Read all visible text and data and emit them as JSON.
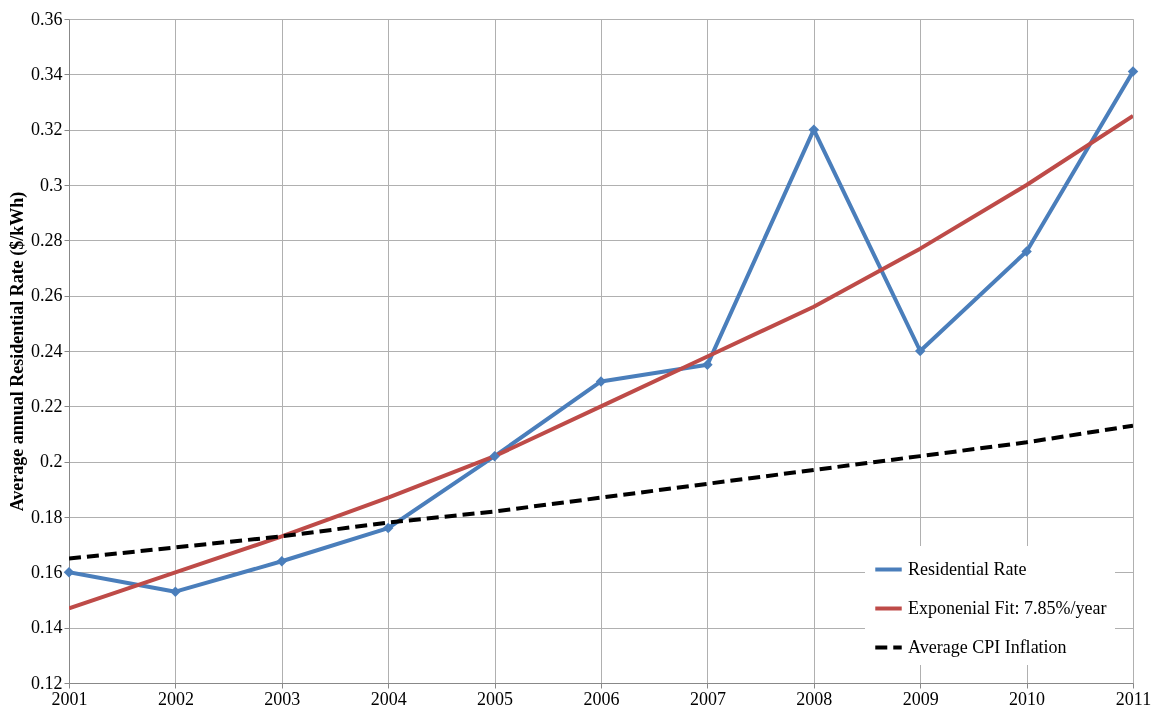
{
  "chart_data": {
    "type": "line",
    "ylabel": "Average annual Residential Rate ($/kWh)",
    "x": [
      2001,
      2002,
      2003,
      2004,
      2005,
      2006,
      2007,
      2008,
      2009,
      2010,
      2011
    ],
    "series": [
      {
        "name": "Residential Rate",
        "color": "#4a7ebb",
        "marker": "diamond",
        "line_style": "solid",
        "values": [
          0.16,
          0.153,
          0.164,
          0.176,
          0.202,
          0.229,
          0.235,
          0.32,
          0.24,
          0.276,
          0.341
        ]
      },
      {
        "name": "Exponenial Fit: 7.85%/year",
        "color": "#be4b48",
        "marker": "none",
        "line_style": "solid",
        "values": [
          0.147,
          0.16,
          0.173,
          0.187,
          0.202,
          0.22,
          0.238,
          0.256,
          0.277,
          0.3,
          0.325
        ]
      },
      {
        "name": "Average CPI Inflation",
        "color": "#000000",
        "marker": "none",
        "line_style": "dashed",
        "values": [
          0.165,
          0.169,
          0.173,
          0.178,
          0.182,
          0.187,
          0.192,
          0.197,
          0.202,
          0.207,
          0.213
        ]
      }
    ],
    "xlim": [
      2001,
      2011
    ],
    "xticks": [
      2001,
      2002,
      2003,
      2004,
      2005,
      2006,
      2007,
      2008,
      2009,
      2010,
      2011
    ],
    "ylim": [
      0.12,
      0.36
    ],
    "yticks": [
      0.12,
      0.14,
      0.16,
      0.18,
      0.2,
      0.22,
      0.24,
      0.26,
      0.28,
      0.3,
      0.32,
      0.34,
      0.36
    ],
    "grid": true,
    "legend": "bottom right"
  }
}
